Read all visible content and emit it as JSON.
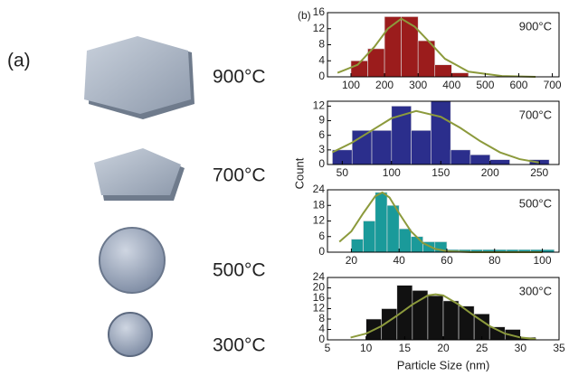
{
  "panel_a": {
    "label": "(a)",
    "temperatures": [
      "900°C",
      "700°C",
      "500°C",
      "300°C"
    ]
  },
  "panel_b": {
    "label": "(b)"
  },
  "chart_data": [
    {
      "type": "histogram",
      "title": "900°C",
      "color": "#9b1c1c",
      "bins": [
        100,
        150,
        200,
        250,
        300,
        350,
        400,
        450
      ],
      "counts": [
        4,
        7,
        15,
        15,
        9,
        3,
        1
      ],
      "xlim": [
        30,
        720
      ],
      "xticks": [
        100,
        200,
        300,
        400,
        500,
        600,
        700
      ],
      "ylim": [
        0,
        16
      ],
      "yticks": [
        0,
        4,
        8,
        12,
        16
      ],
      "fit": {
        "color": "#8c9a3c",
        "x": [
          60,
          120,
          170,
          210,
          250,
          290,
          330,
          380,
          450,
          550,
          650
        ],
        "y": [
          1,
          3,
          7.5,
          12,
          14.5,
          12.5,
          9,
          4.5,
          1.3,
          0.2,
          0
        ]
      }
    },
    {
      "type": "histogram",
      "title": "700°C",
      "color": "#2b2e8c",
      "y_label": "Count",
      "bins": [
        40,
        60,
        80,
        100,
        120,
        140,
        160,
        180,
        200,
        220,
        240,
        260
      ],
      "counts": [
        3,
        7,
        7,
        12,
        7,
        13,
        3,
        2,
        1,
        0,
        1
      ],
      "xlim": [
        35,
        270
      ],
      "xticks": [
        50,
        100,
        150,
        200,
        250
      ],
      "ylim": [
        0,
        13
      ],
      "yticks": [
        0,
        3,
        6,
        9,
        12
      ],
      "fit": {
        "color": "#8c9a3c",
        "x": [
          40,
          60,
          80,
          100,
          125,
          150,
          170,
          190,
          210,
          230,
          250
        ],
        "y": [
          2.5,
          4.5,
          7,
          9.5,
          11,
          9.8,
          7.5,
          4.8,
          2.5,
          1.1,
          0.4
        ]
      }
    },
    {
      "type": "histogram",
      "title": "500°C",
      "color": "#1a9a9a",
      "bins": [
        20,
        25,
        30,
        35,
        40,
        45,
        50,
        55,
        60,
        65,
        70,
        75,
        80,
        85,
        90,
        95,
        100,
        105
      ],
      "counts": [
        5,
        12,
        23,
        18,
        9,
        6,
        4,
        4,
        1,
        1,
        1,
        1,
        1,
        1,
        1,
        1,
        1
      ],
      "xlim": [
        10,
        107
      ],
      "xticks": [
        20,
        40,
        60,
        80,
        100
      ],
      "ylim": [
        0,
        24
      ],
      "yticks": [
        0,
        6,
        12,
        18,
        24
      ],
      "fit": {
        "color": "#8c9a3c",
        "x": [
          15,
          20,
          25,
          30,
          33,
          36,
          40,
          45,
          50,
          55,
          60,
          70,
          100
        ],
        "y": [
          4,
          8,
          15,
          21.5,
          23,
          21,
          15,
          8,
          3.5,
          1.3,
          0.4,
          0,
          0
        ]
      }
    },
    {
      "type": "histogram",
      "title": "300°C",
      "color": "#111111",
      "x_label": "Particle Size (nm)",
      "bins": [
        10,
        12,
        14,
        16,
        18,
        20,
        22,
        24,
        26,
        28,
        30,
        32
      ],
      "counts": [
        8,
        12,
        21,
        19,
        17,
        15,
        13,
        10,
        5,
        4,
        1
      ],
      "xlim": [
        5,
        35
      ],
      "xticks": [
        5,
        10,
        15,
        20,
        25,
        30,
        35
      ],
      "ylim": [
        0,
        24
      ],
      "yticks": [
        0,
        4,
        8,
        12,
        16,
        20,
        24
      ],
      "fit": {
        "color": "#8c9a3c",
        "x": [
          8,
          10,
          12,
          14,
          16,
          18,
          19,
          20,
          22,
          24,
          26,
          28,
          30,
          32
        ],
        "y": [
          0.9,
          2.4,
          5.3,
          9.3,
          13.6,
          17.1,
          17.5,
          17.1,
          13.6,
          9.3,
          5.3,
          2.4,
          0.9,
          0.3
        ]
      }
    }
  ]
}
